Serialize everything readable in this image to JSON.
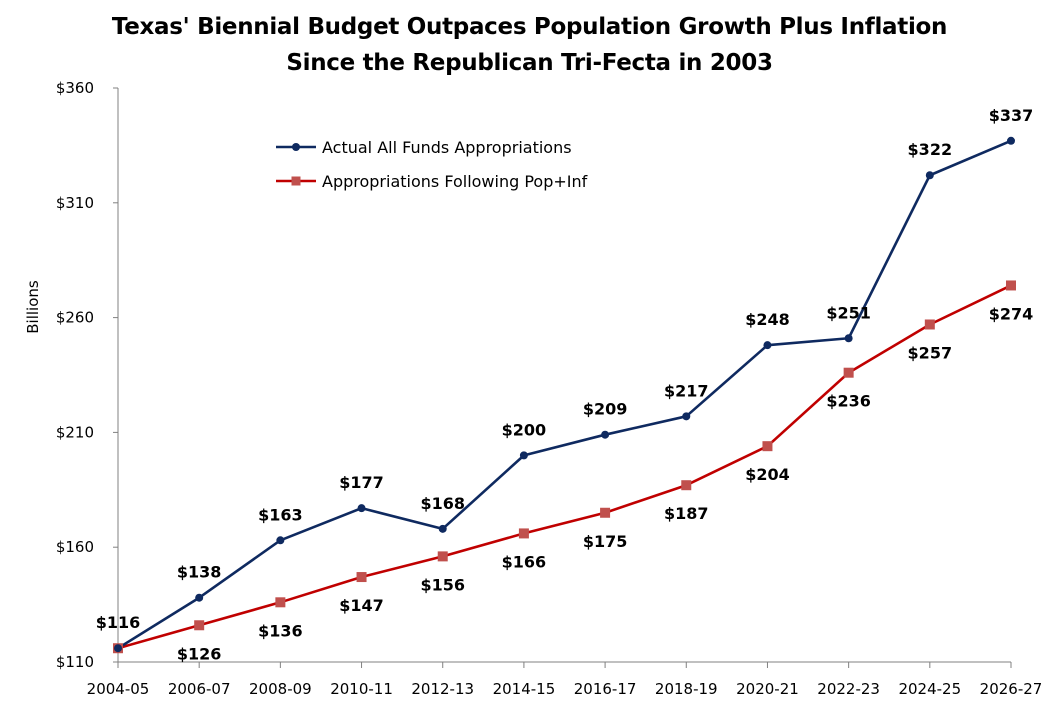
{
  "chart_data": {
    "type": "line",
    "title_line1": "Texas' Biennial Budget Outpaces Population Growth Plus Inflation",
    "title_line2": "Since the Republican Tri-Fecta in 2003",
    "ylabel": "Billions",
    "xlabel": "",
    "ylim": [
      110,
      360
    ],
    "y_ticks": [
      110,
      160,
      210,
      260,
      310,
      360
    ],
    "y_tick_labels": [
      "$110",
      "$160",
      "$210",
      "$260",
      "$310",
      "$360"
    ],
    "categories": [
      "2004-05",
      "2006-07",
      "2008-09",
      "2010-11",
      "2012-13",
      "2014-15",
      "2016-17",
      "2018-19",
      "2020-21",
      "2022-23",
      "2024-25",
      "2026-27"
    ],
    "legend_position": "top-left",
    "series": [
      {
        "name": "Actual All Funds Appropriations",
        "color": "#0f2a60",
        "marker": "circle",
        "values": [
          116,
          138,
          163,
          177,
          168,
          200,
          209,
          217,
          248,
          251,
          322,
          337
        ],
        "labels": [
          "$116",
          "$138",
          "$163",
          "$177",
          "$168",
          "$200",
          "$209",
          "$217",
          "$248",
          "$251",
          "$322",
          "$337"
        ]
      },
      {
        "name": "Appropriations Following Pop+Inf",
        "color": "#c00000",
        "marker_color": "#c0504d",
        "marker": "square",
        "values": [
          116,
          126,
          136,
          147,
          156,
          166,
          175,
          187,
          204,
          236,
          257,
          274
        ],
        "labels": [
          "",
          "$126",
          "$136",
          "$147",
          "$156",
          "$166",
          "$175",
          "$187",
          "$204",
          "$236",
          "$257",
          "$274"
        ]
      }
    ]
  }
}
